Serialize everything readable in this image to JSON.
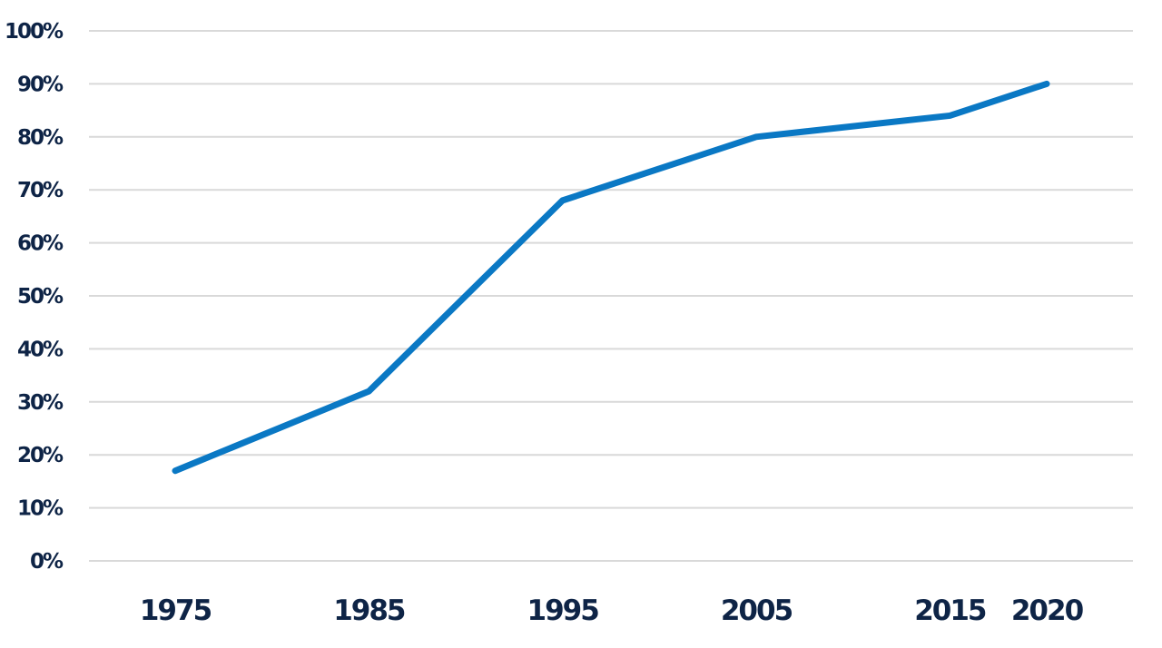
{
  "chart_data": {
    "type": "line",
    "title": "",
    "xlabel": "",
    "ylabel": "",
    "categories": [
      "1975",
      "1985",
      "1995",
      "2005",
      "2015",
      "2020"
    ],
    "series": [
      {
        "values": [
          17,
          32,
          68,
          80,
          84,
          90
        ],
        "color": "#0a78c4"
      }
    ],
    "ylim": [
      0,
      100
    ],
    "y_ticks": [
      0,
      10,
      20,
      30,
      40,
      50,
      60,
      70,
      80,
      90,
      100
    ],
    "y_tick_labels": [
      "0%",
      "10%",
      "20%",
      "30%",
      "40%",
      "50%",
      "60%",
      "70%",
      "80%",
      "90%",
      "100%"
    ],
    "grid": true,
    "legend": "none"
  },
  "colors": {
    "line": "#0a78c4",
    "text": "#0e2446",
    "grid": "#d9d9d9"
  }
}
